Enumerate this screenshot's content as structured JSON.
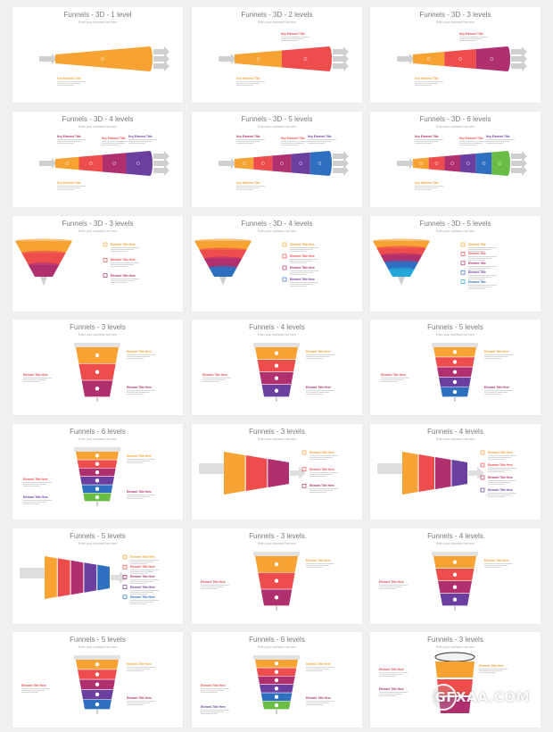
{
  "slides": [
    {
      "title": "Funnels - 3D - 1 level",
      "subtitle": "Enter your subhead line here",
      "labels": [
        "Key Element Title"
      ]
    },
    {
      "title": "Funnels - 3D - 2 levels",
      "subtitle": "Enter your subhead line here",
      "labels": [
        "Key Element Title",
        "Key Element Title"
      ]
    },
    {
      "title": "Funnels - 3D - 3 levels",
      "subtitle": "Enter your subhead line here",
      "labels": [
        "Key Element Title",
        "Key Element Title"
      ]
    },
    {
      "title": "Funnels - 3D - 4 levels",
      "subtitle": "Enter your subhead line here",
      "labels": [
        "Key Element Title",
        "Key Element Title",
        "Key Element Title",
        "Key Element Title"
      ]
    },
    {
      "title": "Funnels - 3D - 5 levels",
      "subtitle": "Enter your subhead line here",
      "labels": [
        "Key Element Title",
        "Key Element Title",
        "Key Element Title",
        "Key Element Title"
      ]
    },
    {
      "title": "Funnels - 3D - 6 levels",
      "subtitle": "Enter your subhead line here",
      "labels": [
        "Key Element Title",
        "Key Element Title",
        "Key Element Title",
        "Key Element Title"
      ]
    },
    {
      "title": "Funnels - 3D - 3 levels",
      "subtitle": "Enter your subhead line here",
      "labels": [
        "Element Title Here",
        "Element Title Here",
        "Element Title Here"
      ]
    },
    {
      "title": "Funnels - 3D - 4 levels",
      "subtitle": "Enter your subhead line here",
      "labels": [
        "Element Title Here",
        "Element Title Here",
        "Element Title Here",
        "Element Title Here"
      ]
    },
    {
      "title": "Funnels - 3D - 5 levels",
      "subtitle": "Enter your subhead line here",
      "labels": [
        "Element Title",
        "Element Title",
        "Element Title",
        "Element Title",
        "Element Title"
      ]
    },
    {
      "title": "Funnels - 3 levels",
      "subtitle": "Enter your subhead line here",
      "labels": [
        "Element Title Here",
        "Element Title Here",
        "Element Title Here"
      ]
    },
    {
      "title": "Funnels - 4 levels",
      "subtitle": "Enter your subhead line here",
      "labels": [
        "Element Title Here",
        "Element Title Here",
        "Element Title Here"
      ]
    },
    {
      "title": "Funnels - 5 levels",
      "subtitle": "Enter your subhead line here",
      "labels": [
        "Element Title Here",
        "Element Title Here",
        "Element Title Here"
      ]
    },
    {
      "title": "Funnels - 6 levels",
      "subtitle": "Enter your subhead line here",
      "labels": [
        "Element Title Here",
        "Element Title Here",
        "Element Title Here",
        "Element Title Here"
      ]
    },
    {
      "title": "Funnels - 3 levels",
      "subtitle": "Enter your subhead line here",
      "labels": [
        "Element Title Here",
        "Element Title Here",
        "Element Title Here"
      ]
    },
    {
      "title": "Funnels - 4 levels",
      "subtitle": "Enter your subhead line here",
      "labels": [
        "Element Title Here",
        "Element Title Here",
        "Element Title Here",
        "Element Title Here"
      ]
    },
    {
      "title": "Funnels - 5 levels",
      "subtitle": "Enter your subhead line here",
      "labels": [
        "Element Title Here",
        "Element Title Here",
        "Element Title Here",
        "Element Title Here",
        "Element Title Here"
      ]
    },
    {
      "title": "Funnels - 3 levels",
      "subtitle": "Enter your subhead line here",
      "labels": [
        "Element Title Here",
        "Element Title Here"
      ]
    },
    {
      "title": "Funnels - 4 levels",
      "subtitle": "Enter your subhead line here",
      "labels": [
        "Element Title Here",
        "Element Title Here"
      ]
    },
    {
      "title": "Funnels - 5 levels",
      "subtitle": "Enter your subhead line here",
      "labels": [
        "Element Title Here",
        "Element Title Here",
        "Element Title Here"
      ]
    },
    {
      "title": "Funnels - 6 levels",
      "subtitle": "Enter your subhead line here",
      "labels": [
        "Element Title Here",
        "Element Title Here",
        "Element Title Here",
        "Element Title Here"
      ]
    },
    {
      "title": "Funnels - 3 levels",
      "subtitle": "Enter your subhead line here",
      "labels": [
        "Element Title Here",
        "Element Title Here",
        "Element Title Here"
      ]
    }
  ],
  "watermark": "GFXAA.COM",
  "colors": [
    "#f7a334",
    "#ee4d4d",
    "#b0306f",
    "#6b3fa0",
    "#2f6fc0",
    "#22a7d8",
    "#69bd45"
  ]
}
